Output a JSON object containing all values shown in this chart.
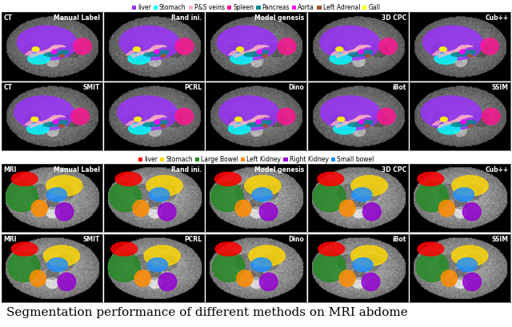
{
  "ct_legend": {
    "liver": "#9B30FF",
    "Stomach": "#00FFFF",
    "P&S veins": "#FFB6C1",
    "Spleen": "#FF1493",
    "Pancreas": "#008B8B",
    "Aorta": "#FF00FF",
    "Left Adrenal": "#A0522D",
    "Gall": "#FFFF00"
  },
  "mri_legend": {
    "liver": "#FF0000",
    "Stomach": "#FFD700",
    "Large Bowel": "#228B22",
    "Left Kidney": "#FF8C00",
    "Right Kidney": "#9400D3",
    "Small bowel": "#1E90FF"
  },
  "ct_row1_labels": [
    "Manual Label",
    "Rand ini.",
    "Model genesis",
    "3D CPC",
    "Cub++"
  ],
  "ct_row2_labels": [
    "SMIT",
    "PCRL",
    "Dino",
    "iBot",
    "SSIM"
  ],
  "mri_row1_labels": [
    "Manual Label",
    "Rand ini.",
    "Model genesis",
    "3D CPC",
    "Cub++"
  ],
  "mri_row2_labels": [
    "SMIT",
    "PCRL",
    "Dino",
    "iBot",
    "SSIM"
  ],
  "ct_prefix": "CT",
  "mri_prefix": "MRI",
  "caption": "Segmentation performance of different methods on MRI abdome",
  "bg_color": "#000000",
  "text_color": "#ffffff",
  "caption_color": "#000000",
  "legend_fontsize": 5.5,
  "label_fontsize": 5.5,
  "caption_fontsize": 11,
  "figure_bg": "#ffffff",
  "num_cols": 5
}
